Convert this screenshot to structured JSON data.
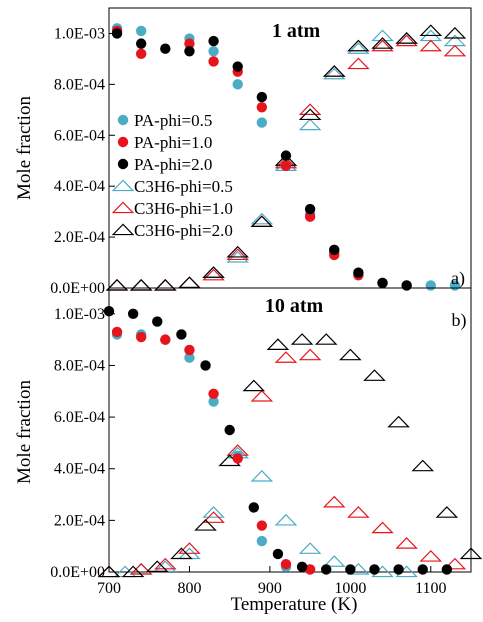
{
  "chart_data": [
    {
      "type": "scatter",
      "title": "1 atm",
      "panel_label": "a)",
      "xlabel": "",
      "ylabel": "Mole fraction",
      "xlim": [
        700,
        1150
      ],
      "ylim": [
        0,
        0.0011
      ],
      "y_ticks": [
        0,
        0.0002,
        0.0004,
        0.0006,
        0.0008,
        0.001
      ],
      "y_tick_labels": [
        "0.0E+00",
        "2.0E-04",
        "4.0E-04",
        "6.0E-04",
        "8.0E-04",
        "1.0E-03"
      ],
      "legend_position": "left",
      "series": [
        {
          "name": "PA-phi=0.5",
          "marker": "circle",
          "color": "#4bacc6",
          "x": [
            710,
            740,
            800,
            830,
            860,
            890,
            920,
            950,
            980,
            1010,
            1040,
            1070,
            1100,
            1130
          ],
          "y": [
            0.00102,
            0.00101,
            0.00098,
            0.00093,
            0.0008,
            0.00065,
            0.00048,
            0.00029,
            0.00014,
            6e-05,
            2e-05,
            1e-05,
            1e-05,
            1e-05
          ]
        },
        {
          "name": "PA-phi=1.0",
          "marker": "circle",
          "color": "#e8141c",
          "x": [
            710,
            740,
            800,
            830,
            860,
            890,
            920,
            950,
            980,
            1010,
            1040
          ],
          "y": [
            0.00101,
            0.00092,
            0.00096,
            0.00089,
            0.00085,
            0.00071,
            0.00048,
            0.00028,
            0.00013,
            5e-05,
            2e-05
          ]
        },
        {
          "name": "PA-phi=2.0",
          "marker": "circle",
          "color": "#000000",
          "x": [
            710,
            740,
            770,
            800,
            830,
            860,
            890,
            920,
            950,
            980,
            1010,
            1040,
            1070
          ],
          "y": [
            0.001,
            0.00096,
            0.00094,
            0.00093,
            0.00097,
            0.00087,
            0.00075,
            0.00052,
            0.00031,
            0.00015,
            6e-05,
            2e-05,
            1e-05
          ]
        },
        {
          "name": "C3H6-phi=0.5",
          "marker": "triangle",
          "color": "#4bacc6",
          "x": [
            710,
            740,
            770,
            800,
            830,
            860,
            890,
            920,
            950,
            980,
            1010,
            1040,
            1070,
            1100,
            1130
          ],
          "y": [
            1e-05,
            1e-05,
            1e-05,
            2e-05,
            6e-05,
            0.00012,
            0.00027,
            0.00048,
            0.00064,
            0.00084,
            0.00094,
            0.00099,
            0.00098,
            0.00099,
            0.00097
          ]
        },
        {
          "name": "C3H6-phi=1.0",
          "marker": "triangle",
          "color": "#e8141c",
          "x": [
            710,
            740,
            770,
            800,
            830,
            860,
            890,
            920,
            950,
            980,
            1010,
            1040,
            1070,
            1100,
            1130
          ],
          "y": [
            1e-05,
            1e-05,
            1e-05,
            2e-05,
            5e-05,
            0.00013,
            0.00026,
            0.00049,
            0.0007,
            0.00085,
            0.00088,
            0.00095,
            0.00097,
            0.00095,
            0.00093
          ]
        },
        {
          "name": "C3H6-phi=2.0",
          "marker": "triangle",
          "color": "#000000",
          "x": [
            710,
            740,
            770,
            800,
            830,
            860,
            890,
            920,
            950,
            980,
            1010,
            1040,
            1070,
            1100,
            1130
          ],
          "y": [
            1e-05,
            1e-05,
            1e-05,
            2e-05,
            6e-05,
            0.00014,
            0.00026,
            0.0005,
            0.00068,
            0.00085,
            0.00095,
            0.00096,
            0.00098,
            0.00101,
            0.001
          ]
        }
      ]
    },
    {
      "type": "scatter",
      "title": "10 atm",
      "panel_label": "b)",
      "xlabel": "Temperature (K)",
      "ylabel": "Mole fraction",
      "xlim": [
        700,
        1150
      ],
      "ylim": [
        0,
        0.0011
      ],
      "x_ticks": [
        700,
        800,
        900,
        1000,
        1100
      ],
      "x_tick_labels": [
        "700",
        "800",
        "900",
        "1000",
        "1100"
      ],
      "y_ticks": [
        0,
        0.0002,
        0.0004,
        0.0006,
        0.0008,
        0.001
      ],
      "y_tick_labels": [
        "0.0E+00",
        "2.0E-04",
        "4.0E-04",
        "6.0E-04",
        "8.0E-04",
        "1.0E-03"
      ],
      "series": [
        {
          "name": "PA-phi=0.5",
          "marker": "circle",
          "color": "#4bacc6",
          "x": [
            710,
            740,
            770,
            800,
            830,
            860,
            890,
            920,
            950
          ],
          "y": [
            0.00092,
            0.00092,
            0.0009,
            0.00083,
            0.00066,
            0.00045,
            0.00012,
            2e-05,
            1e-05
          ]
        },
        {
          "name": "PA-phi=1.0",
          "marker": "circle",
          "color": "#e8141c",
          "x": [
            710,
            740,
            770,
            800,
            830,
            860,
            890,
            920,
            950
          ],
          "y": [
            0.00093,
            0.00091,
            0.0009,
            0.00086,
            0.00069,
            0.00044,
            0.00018,
            3e-05,
            1e-05
          ]
        },
        {
          "name": "PA-phi=2.0",
          "marker": "circle",
          "color": "#000000",
          "x": [
            700,
            730,
            760,
            790,
            820,
            850,
            880,
            910,
            940,
            970,
            1000,
            1030,
            1060,
            1090,
            1120
          ],
          "y": [
            0.00101,
            0.001,
            0.00097,
            0.00092,
            0.0008,
            0.00055,
            0.00025,
            7e-05,
            2e-05,
            1e-05,
            1e-05,
            1e-05,
            1e-05,
            1e-05,
            1e-05
          ]
        },
        {
          "name": "C3H6-phi=0.5",
          "marker": "triangle",
          "color": "#4bacc6",
          "x": [
            700,
            720,
            740,
            770,
            800,
            830,
            860,
            890,
            920,
            950,
            980,
            1010,
            1040,
            1070
          ],
          "y": [
            0.0,
            0.0,
            1e-05,
            2e-05,
            7e-05,
            0.00023,
            0.00046,
            0.00037,
            0.0002,
            9e-05,
            4e-05,
            1e-05,
            0.0,
            0.0
          ]
        },
        {
          "name": "C3H6-phi=1.0",
          "marker": "triangle",
          "color": "#e8141c",
          "x": [
            700,
            740,
            770,
            800,
            830,
            860,
            890,
            920,
            950,
            980,
            1010,
            1040,
            1070,
            1100,
            1130
          ],
          "y": [
            0.0,
            1e-05,
            3e-05,
            9e-05,
            0.00021,
            0.00047,
            0.00068,
            0.00083,
            0.00084,
            0.00027,
            0.00023,
            0.00017,
            0.00011,
            6e-05,
            3e-05
          ]
        },
        {
          "name": "C3H6-phi=2.0",
          "marker": "triangle",
          "color": "#000000",
          "x": [
            700,
            730,
            760,
            790,
            820,
            850,
            880,
            910,
            940,
            970,
            1000,
            1030,
            1060,
            1090,
            1120,
            1150
          ],
          "y": [
            0.0,
            0.0,
            2e-05,
            7e-05,
            0.00018,
            0.00043,
            0.00072,
            0.00088,
            0.0009,
            0.0009,
            0.00084,
            0.00076,
            0.00058,
            0.00041,
            0.00023,
            7e-05
          ]
        }
      ]
    }
  ]
}
